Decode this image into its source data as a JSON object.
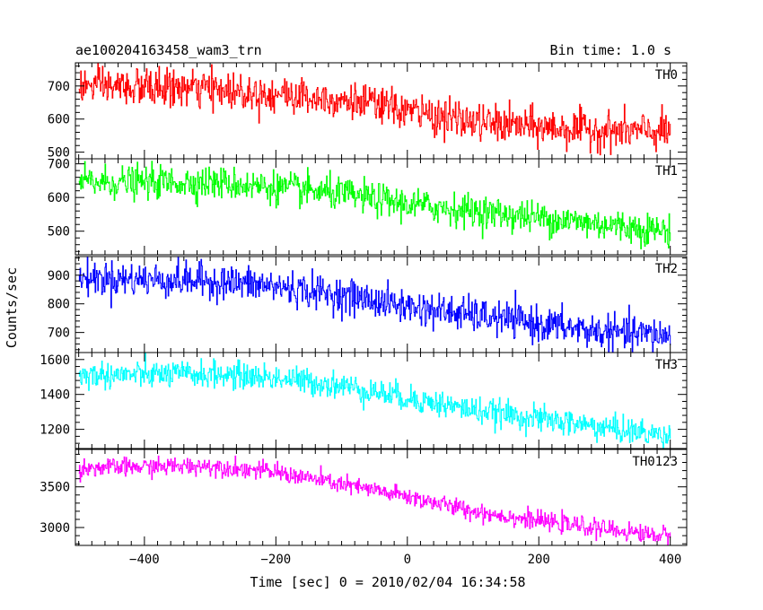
{
  "chart_data": {
    "type": "line",
    "title": "ae100204163458_wam3_trn",
    "subtitle": "Bin time: 1.0 s",
    "xlabel": "Time [sec] 0 = 2010/02/04 16:34:58",
    "ylabel": "Counts/sec",
    "xlim": [
      -505,
      425
    ],
    "x_ticks": [
      -400,
      -200,
      0,
      200,
      400
    ],
    "x_tick_labels": [
      "−400",
      "−200",
      "0",
      "200",
      "400"
    ],
    "x_data_range": [
      -500,
      400
    ],
    "bin_time": 1.0,
    "panels": [
      {
        "name": "TH0",
        "color": "#ff0000",
        "ylim": [
          480,
          770
        ],
        "y_ticks": [
          500,
          600,
          700
        ],
        "y_tick_labels": [
          "500",
          "600",
          "700"
        ],
        "trend": [
          [
            -500,
            700
          ],
          [
            -300,
            690
          ],
          [
            -100,
            660
          ],
          [
            0,
            625
          ],
          [
            100,
            590
          ],
          [
            200,
            575
          ],
          [
            300,
            565
          ],
          [
            400,
            560
          ]
        ],
        "noise_sigma": 28
      },
      {
        "name": "TH1",
        "color": "#00ff00",
        "ylim": [
          430,
          715
        ],
        "y_ticks": [
          500,
          600,
          700
        ],
        "y_tick_labels": [
          "500",
          "600",
          "700"
        ],
        "trend": [
          [
            -500,
            645
          ],
          [
            -300,
            645
          ],
          [
            -200,
            630
          ],
          [
            -100,
            610
          ],
          [
            0,
            580
          ],
          [
            100,
            560
          ],
          [
            200,
            540
          ],
          [
            300,
            520
          ],
          [
            400,
            500
          ]
        ],
        "noise_sigma": 24
      },
      {
        "name": "TH2",
        "color": "#0000ff",
        "ylim": [
          630,
          965
        ],
        "y_ticks": [
          700,
          800,
          900
        ],
        "y_tick_labels": [
          "700",
          "800",
          "900"
        ],
        "trend": [
          [
            -500,
            890
          ],
          [
            -300,
            880
          ],
          [
            -200,
            860
          ],
          [
            -100,
            830
          ],
          [
            0,
            790
          ],
          [
            100,
            760
          ],
          [
            200,
            730
          ],
          [
            300,
            700
          ],
          [
            400,
            690
          ]
        ],
        "noise_sigma": 30
      },
      {
        "name": "TH3",
        "color": "#00ffff",
        "ylim": [
          1090,
          1640
        ],
        "y_ticks": [
          1200,
          1400,
          1600
        ],
        "y_tick_labels": [
          "1200",
          "1400",
          "1600"
        ],
        "trend": [
          [
            -500,
            1510
          ],
          [
            -300,
            1515
          ],
          [
            -200,
            1495
          ],
          [
            -100,
            1450
          ],
          [
            0,
            1380
          ],
          [
            100,
            1310
          ],
          [
            200,
            1260
          ],
          [
            300,
            1210
          ],
          [
            400,
            1160
          ]
        ],
        "noise_sigma": 38
      },
      {
        "name": "TH0123",
        "color": "#ff00ff",
        "ylim": [
          2780,
          3960
        ],
        "y_ticks": [
          3000,
          3500
        ],
        "y_tick_labels": [
          "3000",
          "3500"
        ],
        "trend": [
          [
            -500,
            3730
          ],
          [
            -300,
            3760
          ],
          [
            -200,
            3680
          ],
          [
            -100,
            3530
          ],
          [
            0,
            3380
          ],
          [
            100,
            3200
          ],
          [
            200,
            3080
          ],
          [
            300,
            2980
          ],
          [
            400,
            2890
          ]
        ],
        "noise_sigma": 55
      }
    ]
  }
}
